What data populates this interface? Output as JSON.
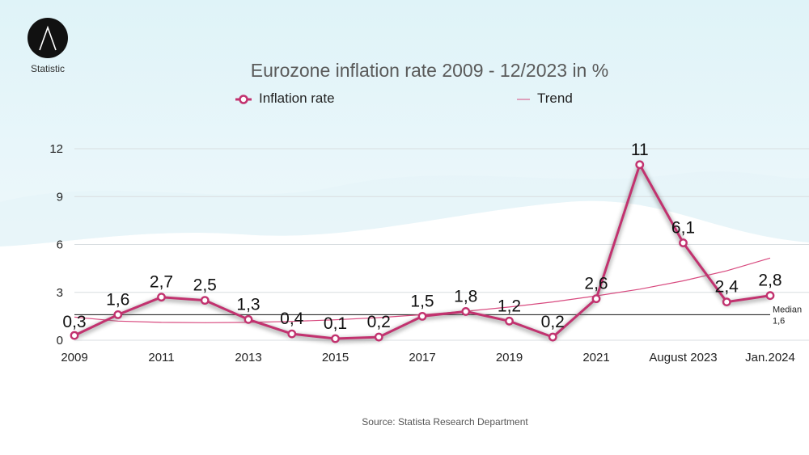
{
  "brand": {
    "name": "Statistic"
  },
  "chart_data": {
    "type": "line",
    "title": "Eurozone inflation rate 2009 - 12/2023 in %",
    "x_tick_labels": [
      "2009",
      "2011",
      "2013",
      "2015",
      "2017",
      "2019",
      "2021",
      "August 2023",
      "Jan.2024"
    ],
    "ylim": [
      0,
      12
    ],
    "y_ticks": [
      "0",
      "3",
      "6",
      "9",
      "12"
    ],
    "grid": true,
    "legend": "top",
    "series": [
      {
        "name": "Inflation rate",
        "color": "#c2326f",
        "values": [
          0.3,
          1.6,
          2.7,
          2.5,
          1.3,
          0.4,
          0.1,
          0.2,
          1.5,
          1.8,
          1.2,
          0.2,
          2.6,
          11,
          6.1,
          2.4,
          2.8
        ],
        "labels": [
          "0,3",
          "1,6",
          "2,7",
          "2,5",
          "1,3",
          "0,4",
          "0,1",
          "0,2",
          "1,5",
          "1,8",
          "1,2",
          "0,2",
          "2,6",
          "11",
          "6,1",
          "2,4",
          "2,8"
        ]
      },
      {
        "name": "Trend",
        "color": "#d84a7f",
        "values": [
          1.45,
          1.2,
          1.12,
          1.1,
          1.12,
          1.18,
          1.28,
          1.42,
          1.6,
          1.82,
          2.08,
          2.4,
          2.78,
          3.2,
          3.72,
          4.35,
          5.15
        ]
      }
    ],
    "median": {
      "value": 1.6,
      "label": "Median",
      "value_label": "1,6"
    }
  },
  "source": "Source: Statista Research Department"
}
